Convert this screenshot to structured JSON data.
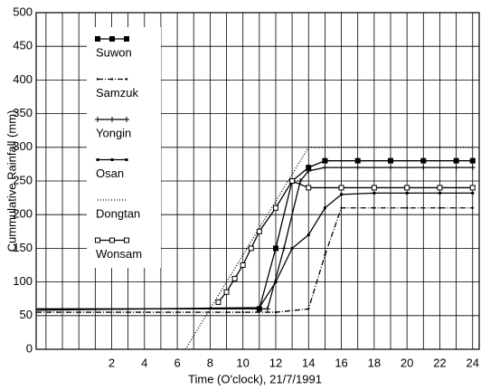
{
  "chart_data": {
    "type": "line",
    "x_label": "Time (O'clock), 21/7/1991",
    "y_label": "Cummulative Rainfall (mm)",
    "xlim": [
      -2.6,
      24.4
    ],
    "ylim": [
      0,
      500
    ],
    "xticks": [
      2,
      4,
      6,
      8,
      10,
      12,
      14,
      16,
      18,
      20,
      22,
      24
    ],
    "xminor": [
      -2,
      -1,
      0,
      1,
      3,
      5,
      7,
      9,
      11,
      13,
      15,
      17,
      19,
      21,
      23
    ],
    "yticks": [
      0,
      50,
      100,
      150,
      200,
      250,
      300,
      350,
      400,
      450,
      500
    ],
    "grid": true,
    "legend": "upper left",
    "series": [
      {
        "name": "Suwon",
        "color": "#000000",
        "style": "solid",
        "marker": "filled-square",
        "x": [
          -2.6,
          11,
          12,
          13,
          14,
          15,
          17,
          19,
          21,
          23,
          24
        ],
        "values": [
          60,
          60,
          150,
          250,
          270,
          280,
          280,
          280,
          280,
          280,
          280
        ]
      },
      {
        "name": "Samzuk",
        "color": "#000000",
        "style": "dashdot",
        "marker": "dot",
        "x": [
          -2.6,
          10,
          12,
          14,
          15,
          16,
          18,
          20,
          22,
          24
        ],
        "values": [
          55,
          55,
          55,
          60,
          140,
          210,
          210,
          210,
          210,
          210
        ]
      },
      {
        "name": "Yongin",
        "color": "#000000",
        "style": "solid",
        "marker": "plus",
        "x": [
          -2.6,
          11.5,
          12.5,
          13.5,
          14,
          15,
          17,
          19,
          21,
          23,
          24
        ],
        "values": [
          60,
          60,
          150,
          250,
          265,
          270,
          270,
          270,
          270,
          270,
          270
        ]
      },
      {
        "name": "Osan",
        "color": "#000000",
        "style": "solid",
        "marker": "small-square",
        "x": [
          -2.6,
          11,
          12,
          13,
          14,
          15,
          16,
          18,
          20,
          22,
          24
        ],
        "values": [
          58,
          62,
          100,
          150,
          170,
          210,
          230,
          232,
          232,
          232,
          232
        ]
      },
      {
        "name": "Dongtan",
        "color": "#000000",
        "style": "dotted",
        "marker": "none",
        "x": [
          6.5,
          8,
          10,
          12,
          14,
          16,
          20,
          24
        ],
        "values": [
          0,
          60,
          140,
          220,
          300,
          300,
          300,
          300
        ]
      },
      {
        "name": "Wonsam",
        "color": "#000000",
        "style": "solid",
        "marker": "open-square",
        "x": [
          8.5,
          9,
          9.5,
          10,
          10.5,
          11,
          12,
          13,
          14,
          16,
          18,
          20,
          22,
          24
        ],
        "values": [
          70,
          85,
          105,
          125,
          150,
          175,
          210,
          250,
          240,
          240,
          240,
          240,
          240,
          240
        ]
      }
    ]
  }
}
